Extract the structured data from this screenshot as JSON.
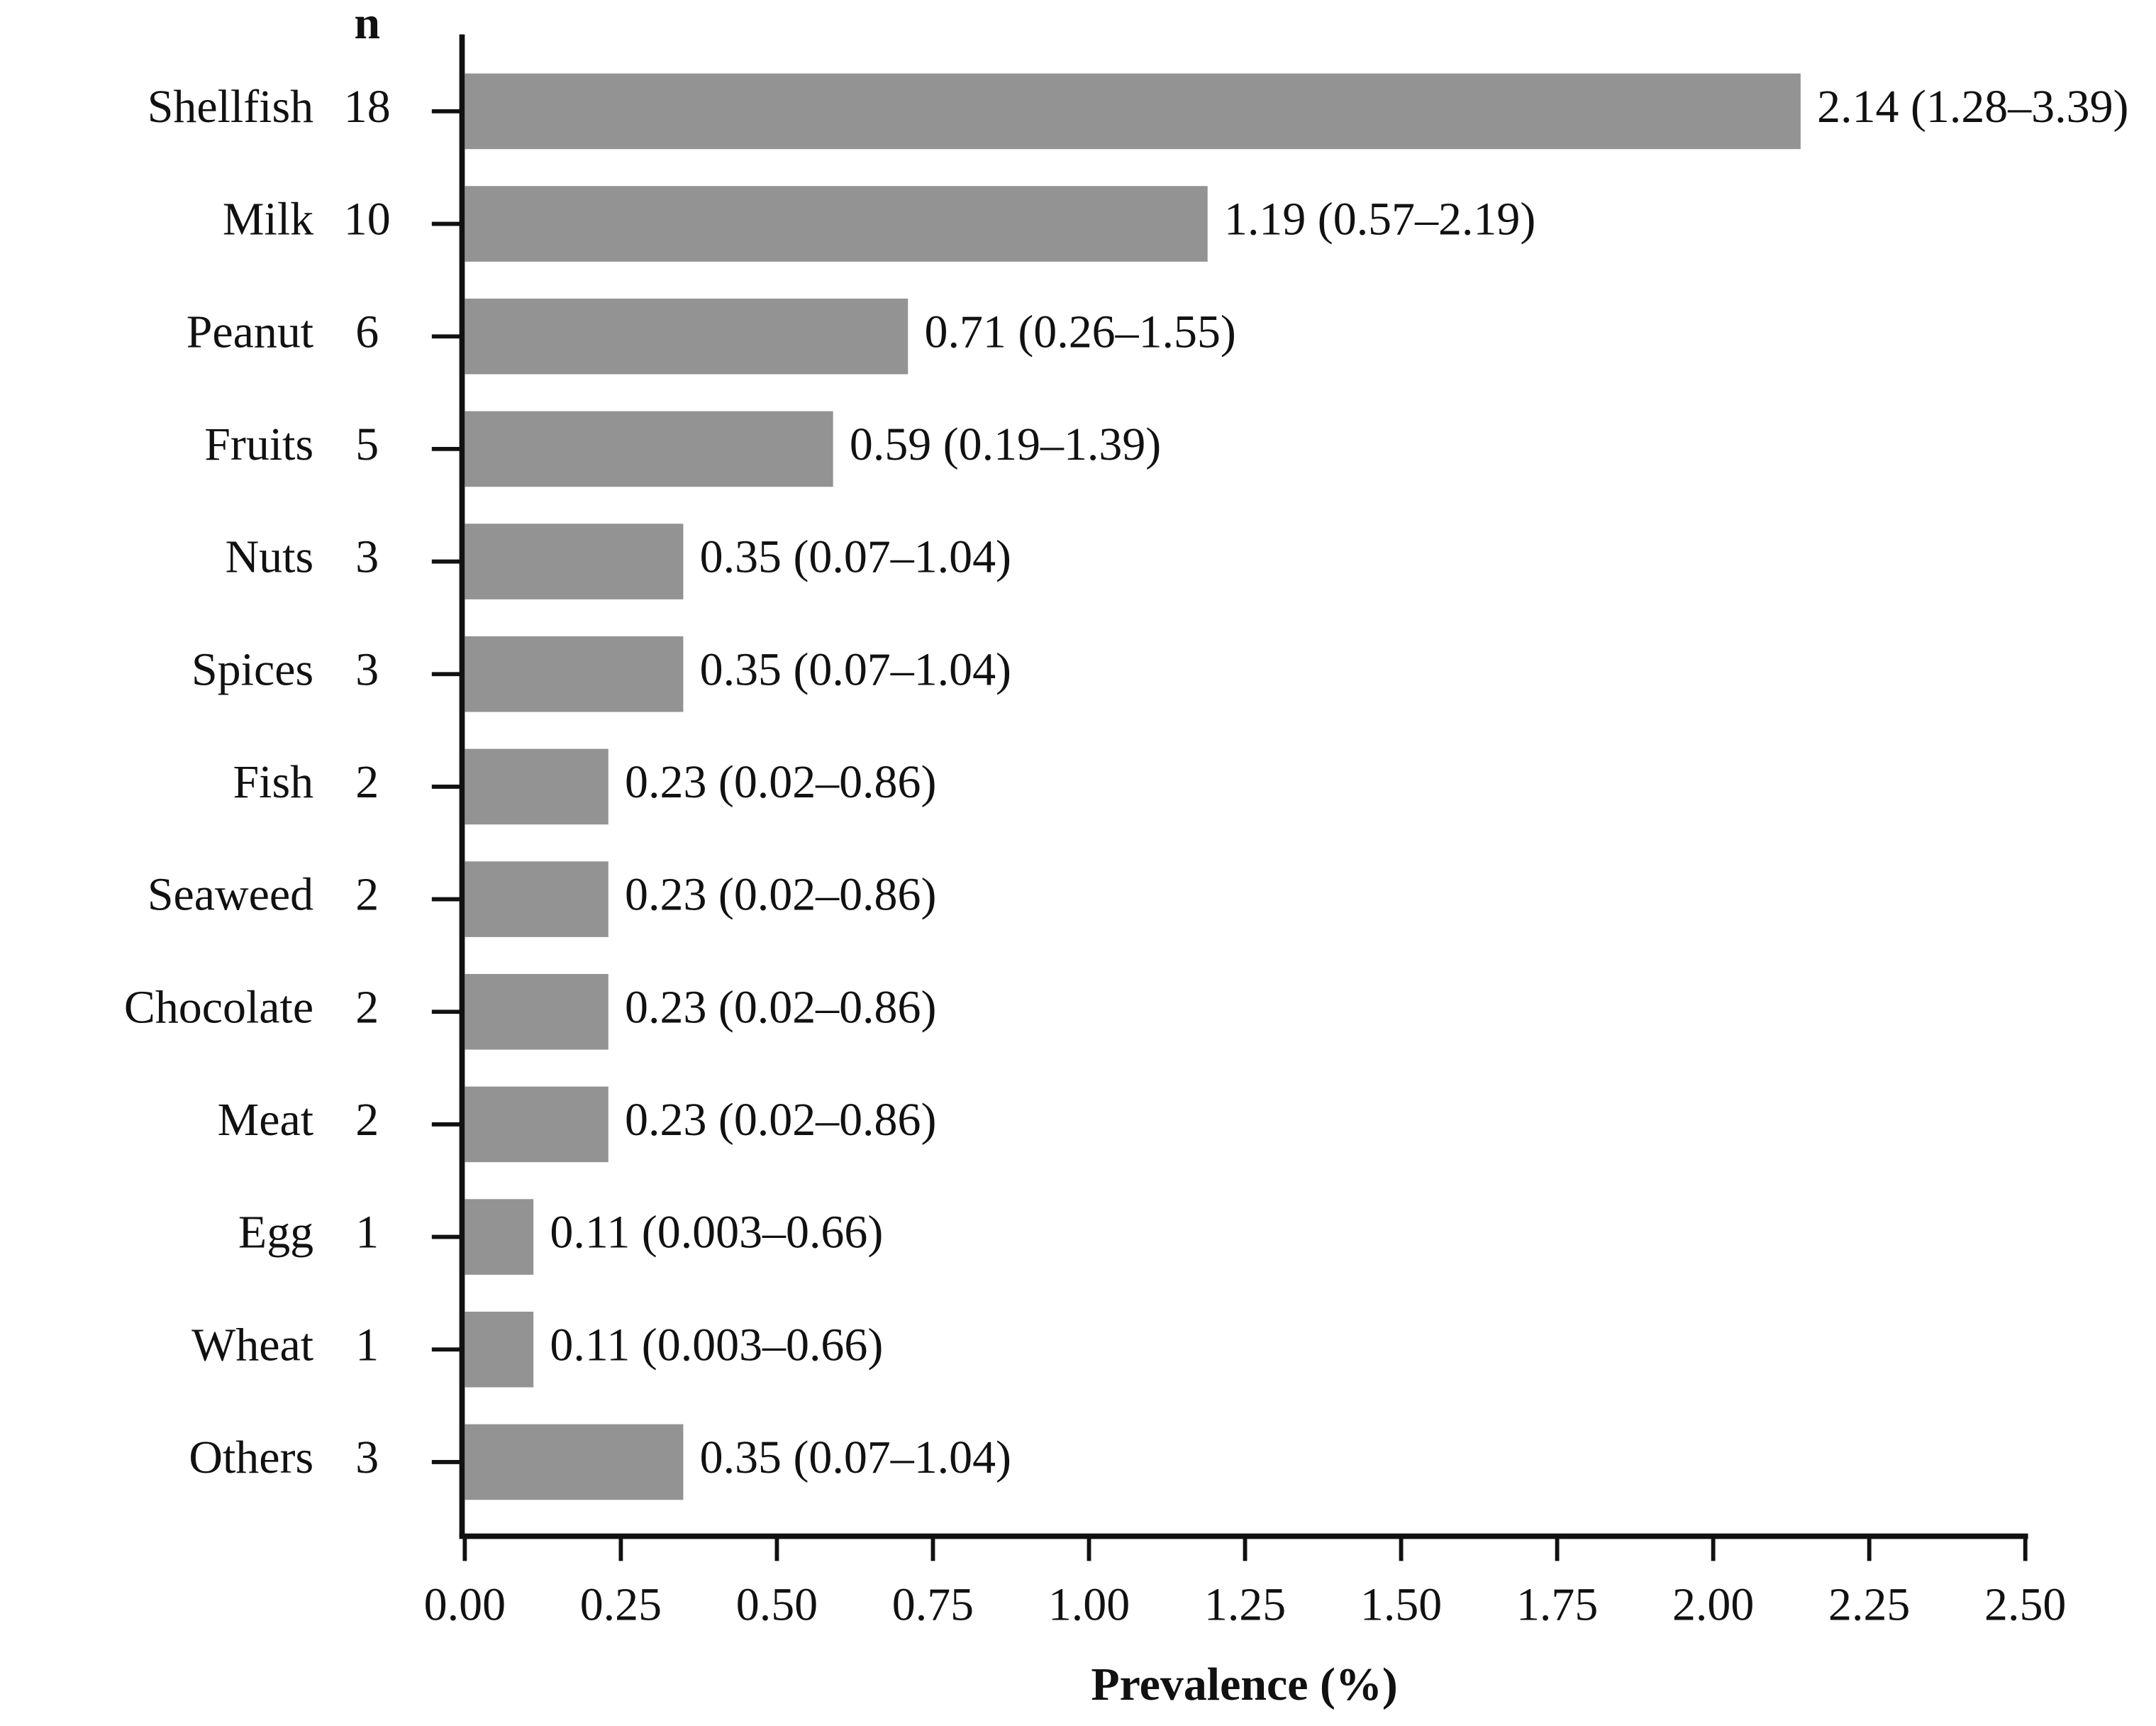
{
  "chart_data": {
    "type": "bar",
    "orientation": "horizontal",
    "x_label": "Prevalence (%)",
    "n_header": "n",
    "categories": [
      "Shellfish",
      "Milk",
      "Peanut",
      "Fruits",
      "Nuts",
      "Spices",
      "Fish",
      "Seaweed",
      "Chocolate",
      "Meat",
      "Egg",
      "Wheat",
      "Others"
    ],
    "n": [
      18,
      10,
      6,
      5,
      3,
      3,
      2,
      2,
      2,
      2,
      1,
      1,
      3
    ],
    "values": [
      2.14,
      1.19,
      0.71,
      0.59,
      0.35,
      0.35,
      0.23,
      0.23,
      0.23,
      0.23,
      0.11,
      0.11,
      0.35
    ],
    "value_labels": [
      "2.14 (1.28–3.39)",
      "1.19 (0.57–2.19)",
      "0.71 (0.26–1.55)",
      "0.59 (0.19–1.39)",
      "0.35 (0.07–1.04)",
      "0.35 (0.07–1.04)",
      "0.23 (0.02–0.86)",
      "0.23 (0.02–0.86)",
      "0.23 (0.02–0.86)",
      "0.23 (0.02–0.86)",
      "0.11 (0.003–0.66)",
      "0.11 (0.003–0.66)",
      "0.35 (0.07–1.04)"
    ],
    "color": "#939393",
    "xlim": [
      0,
      2.5
    ],
    "xticks": [
      {
        "value": 0,
        "label": "0.00"
      },
      {
        "value": 0.25,
        "label": "0.25"
      },
      {
        "value": 0.5,
        "label": "0.50"
      },
      {
        "value": 0.75,
        "label": "0.75"
      },
      {
        "value": 1,
        "label": "1.00"
      },
      {
        "value": 1.25,
        "label": "1.25"
      },
      {
        "value": 1.5,
        "label": "1.50"
      },
      {
        "value": 1.75,
        "label": "1.75"
      },
      {
        "value": 2,
        "label": "2.00"
      },
      {
        "value": 2.25,
        "label": "2.25"
      },
      {
        "value": 2.5,
        "label": "2.50"
      }
    ]
  }
}
